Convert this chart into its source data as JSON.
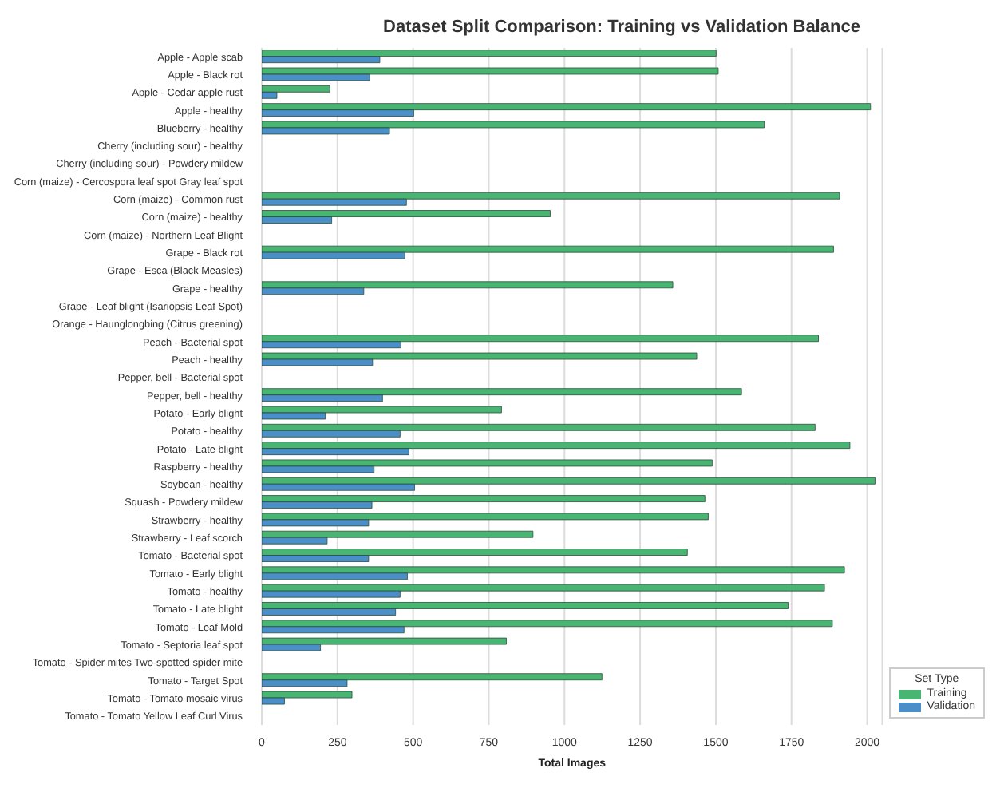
{
  "chart_data": {
    "type": "bar",
    "orientation": "horizontal",
    "title": "Dataset Split Comparison: Training vs Validation Balance",
    "xlabel": "Total Images",
    "legend_title": "Set Type",
    "legend": "bottom right",
    "grid": "x",
    "categories": [
      "Apple - Apple scab",
      "Apple - Black rot",
      "Apple - Cedar apple rust",
      "Apple - healthy",
      "Blueberry - healthy",
      "Cherry (including sour) - healthy",
      "Cherry (including sour) - Powdery mildew",
      "Corn (maize) - Cercospora leaf spot Gray leaf spot",
      "Corn (maize) - Common rust",
      "Corn (maize) - healthy",
      "Corn (maize) - Northern Leaf Blight",
      "Grape - Black rot",
      "Grape - Esca (Black Measles)",
      "Grape - healthy",
      "Grape - Leaf blight (Isariopsis Leaf Spot)",
      "Orange - Haunglongbing (Citrus greening)",
      "Peach - Bacterial spot",
      "Peach - healthy",
      "Pepper, bell - Bacterial spot",
      "Pepper, bell - healthy",
      "Potato - Early blight",
      "Potato - healthy",
      "Potato - Late blight",
      "Raspberry - healthy",
      "Soybean - healthy",
      "Squash - Powdery mildew",
      "Strawberry - healthy",
      "Strawberry - Leaf scorch",
      "Tomato - Bacterial spot",
      "Tomato - Early blight",
      "Tomato - healthy",
      "Tomato - Late blight",
      "Tomato - Leaf Mold",
      "Tomato - Septoria leaf spot",
      "Tomato - Spider mites Two-spotted spider mite",
      "Tomato - Target Spot",
      "Tomato - Tomato mosaic virus",
      "Tomato - Tomato Yellow Leaf Curl Virus"
    ],
    "series": [
      {
        "name": "Training",
        "color": "#48b573",
        "values": [
          1501,
          1508,
          225,
          2011,
          1660,
          null,
          null,
          null,
          1909,
          953,
          null,
          1889,
          null,
          1358,
          null,
          null,
          1839,
          1437,
          null,
          1585,
          792,
          1828,
          1943,
          1488,
          2026,
          1464,
          1475,
          896,
          1406,
          1925,
          1859,
          1739,
          1885,
          808,
          null,
          1124,
          298,
          null
        ]
      },
      {
        "name": "Validation",
        "color": "#4a8fc7",
        "values": [
          390,
          357,
          50,
          502,
          422,
          null,
          null,
          null,
          478,
          231,
          null,
          473,
          null,
          337,
          null,
          null,
          460,
          366,
          null,
          399,
          210,
          457,
          486,
          371,
          505,
          364,
          353,
          216,
          353,
          481,
          457,
          442,
          470,
          194,
          null,
          282,
          75,
          null
        ]
      }
    ],
    "xlim": [
      0,
      2050
    ],
    "xticks": [
      0,
      250,
      500,
      750,
      1000,
      1250,
      1500,
      1750,
      2000
    ]
  }
}
